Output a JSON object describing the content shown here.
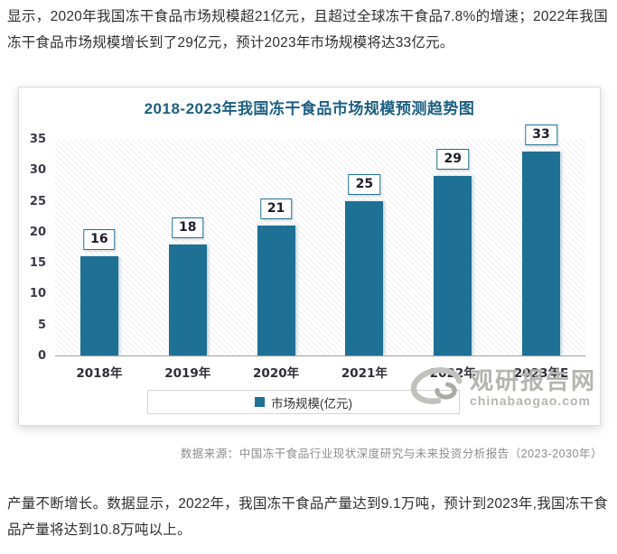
{
  "page": {
    "intro_text": "显示，2020年我国冻干食品市场规模超21亿元，且超过全球冻干食品7.8%的增速；2022年我国冻干食品市场规模增长到了29亿元，预计2023年市场规模将达33亿元。",
    "outro_text": "产量不断增长。数据显示，2022年，我国冻干食品产量达到9.1万吨，预计到2023年,我国冻干食品产量将达到10.8万吨以上。",
    "source_text": "数据来源：中国冻干食品行业现状深度研究与未来投资分析报告（2023-2030年）"
  },
  "chart_data": {
    "type": "bar",
    "title": "2018-2023年我国冻干食品市场规模预测趋势图",
    "categories": [
      "2018年",
      "2019年",
      "2020年",
      "2021年",
      "2022年",
      "2023年E"
    ],
    "values": [
      16,
      18,
      21,
      25,
      29,
      33
    ],
    "legend": "市场规模(亿元)",
    "legend_position": "bottom",
    "xlabel": "",
    "ylabel": "",
    "ylim": [
      0,
      35
    ],
    "y_ticks": [
      0,
      5,
      10,
      15,
      20,
      25,
      30,
      35
    ],
    "grid": false,
    "bar_color": "#1f7095",
    "title_color": "#1e5f80"
  },
  "watermark": {
    "name_cn": "观研报告网",
    "domain": "chinabaogao.com"
  }
}
